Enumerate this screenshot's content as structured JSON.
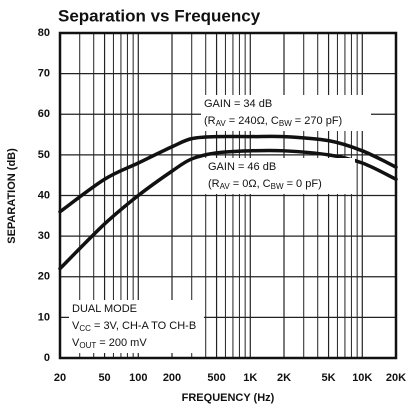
{
  "chart_data": {
    "type": "line",
    "title": "Separation vs Frequency",
    "x_label": "FREQUENCY (Hz)",
    "y_label": "SEPARATION (dB)",
    "log_x": true,
    "grid": true,
    "x": [
      20,
      50,
      100,
      200,
      300,
      500,
      1000,
      2000,
      5000,
      10000,
      20000
    ],
    "series": [
      {
        "name": "GAIN = 34 dB",
        "color": "#111111",
        "values": [
          36,
          44,
          48,
          52,
          54,
          54.5,
          54.5,
          54.5,
          53.5,
          51,
          47
        ]
      },
      {
        "name": "GAIN = 46 dB",
        "color": "#111111",
        "values": [
          22,
          33,
          40,
          46,
          49,
          50.5,
          51,
          51,
          50,
          48,
          44
        ]
      }
    ],
    "xlim": [
      20,
      20000
    ],
    "ylim": [
      0,
      80
    ],
    "xticks": [
      20,
      50,
      100,
      200,
      500,
      {
        "value": 1000,
        "label": "1K"
      },
      {
        "value": 2000,
        "label": "2K"
      },
      {
        "value": 5000,
        "label": "5K"
      },
      {
        "value": 10000,
        "label": "10K"
      },
      {
        "value": 20000,
        "label": "20K"
      }
    ],
    "x_minor_grid": [
      30,
      40,
      60,
      70,
      80,
      90,
      300,
      400,
      600,
      700,
      800,
      900,
      3000,
      4000,
      6000,
      7000,
      8000,
      9000
    ],
    "yticks": [
      0,
      10,
      20,
      30,
      40,
      50,
      60,
      70,
      80
    ],
    "annotations": [
      {
        "lines": [
          [
            "GAIN = 34 dB"
          ],
          [
            "(R",
            "AV",
            " = 240Ω, C",
            "BW",
            " = 270 pF)"
          ]
        ]
      },
      {
        "lines": [
          [
            "GAIN = 46 dB"
          ],
          [
            "(R",
            "AV",
            " = 0Ω, C",
            "BW",
            " = 0 pF)"
          ]
        ]
      },
      {
        "lines": [
          [
            "DUAL MODE"
          ],
          [
            "V",
            "CC",
            " = 3V, CH-A TO CH-B"
          ],
          [
            "V",
            "OUT",
            " = 200 mV"
          ]
        ]
      }
    ]
  }
}
